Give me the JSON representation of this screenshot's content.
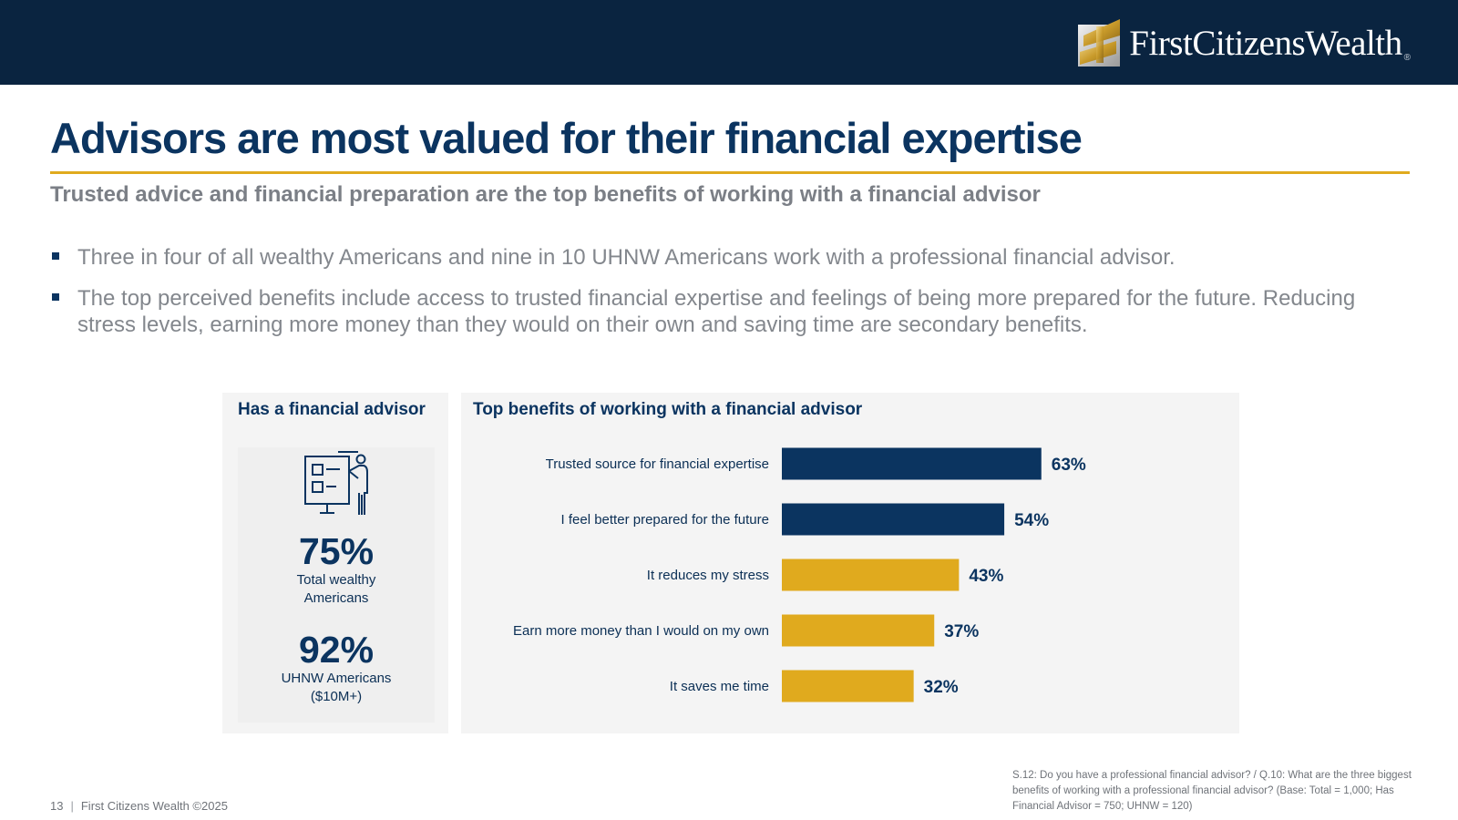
{
  "brand": {
    "name": "FirstCitizensWealth",
    "registered": "®",
    "colors": {
      "navy": "#0a2440",
      "title_blue": "#0b3460",
      "gold": "#e0aa1e",
      "gray_text": "#83878d"
    }
  },
  "slide": {
    "title": "Advisors are most valued for their financial expertise",
    "subtitle": "Trusted advice and financial preparation are the top benefits of working with a financial advisor",
    "bullets": [
      "Three in four of all wealthy Americans and nine in 10 UHNW Americans work with a professional financial advisor.",
      "The top perceived benefits include access to trusted financial expertise and feelings of being more prepared for the future. Reducing stress levels, earning more money than they would on their own and saving time are secondary benefits."
    ]
  },
  "advisor_panel": {
    "heading": "Has a financial advisor",
    "icon": "presenter-board-icon",
    "stats": [
      {
        "value": "75%",
        "label_line1": "Total wealthy",
        "label_line2": "Americans"
      },
      {
        "value": "92%",
        "label_line1": "UHNW Americans",
        "label_line2": "($10M+)"
      }
    ]
  },
  "chart_data": {
    "type": "bar",
    "orientation": "horizontal",
    "title": "Top benefits of working with a financial advisor",
    "categories": [
      "Trusted source for financial expertise",
      "I feel better prepared for the future",
      "It reduces my stress",
      "Earn more money than I would on my own",
      "It saves me time"
    ],
    "values": [
      63,
      54,
      43,
      37,
      32
    ],
    "value_labels": [
      "63%",
      "54%",
      "43%",
      "37%",
      "32%"
    ],
    "bar_colors": [
      "#0b3460",
      "#0b3460",
      "#e0aa1e",
      "#e0aa1e",
      "#e0aa1e"
    ],
    "xlim": [
      0,
      100
    ],
    "unit": "%",
    "grid": false,
    "legend": "none"
  },
  "footer": {
    "page_number": "13",
    "separator": "|",
    "copyright": "First Citizens Wealth ©2025",
    "source_note": "S.12:  Do you have a professional financial advisor? / Q.10:  What are the three biggest benefits of working with a professional financial advisor? (Base: Total = 1,000; Has Financial Advisor = 750; UHNW = 120)"
  }
}
